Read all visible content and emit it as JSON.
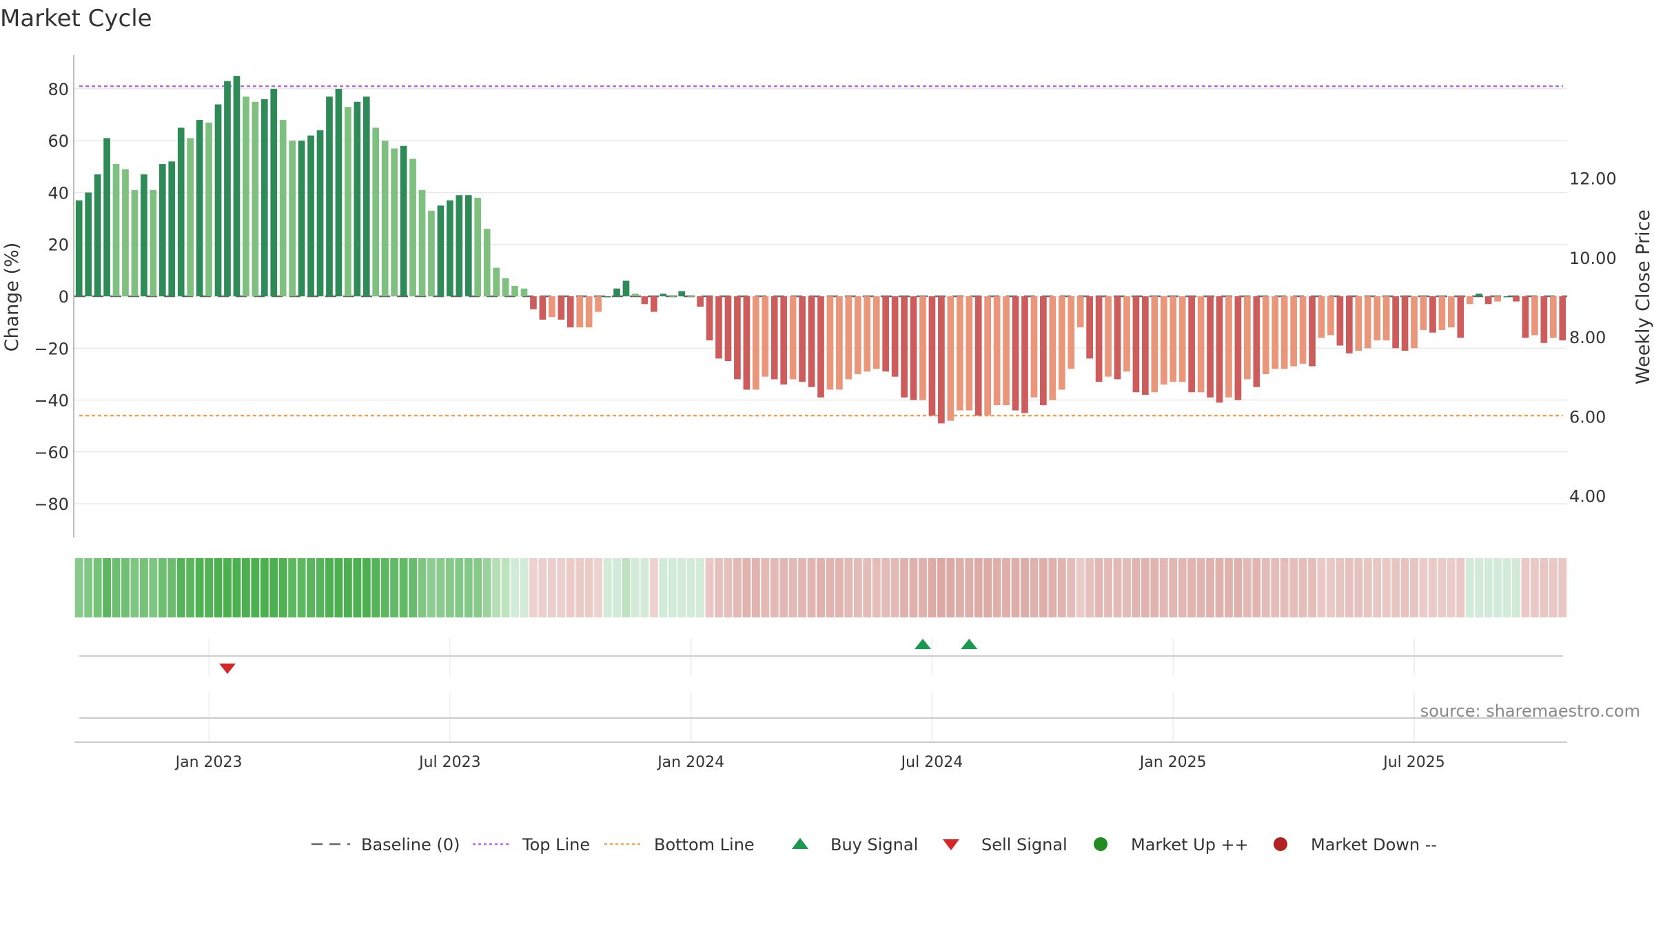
{
  "chart_data": {
    "type": "bar",
    "title": "Market Cycle",
    "ylabel_left": "Change (%)",
    "ylabel_right": "Weekly Close Price",
    "ylim_left": [
      -93,
      93
    ],
    "yticks_left": [
      80,
      60,
      40,
      20,
      0,
      -20,
      -40,
      -60,
      -80
    ],
    "ytick_labels_left": [
      "80",
      "60",
      "40",
      "20",
      "0",
      "−20",
      "−40",
      "−60",
      "−80"
    ],
    "yticks_right": [
      12,
      10,
      8,
      6,
      4
    ],
    "ytick_labels_right": [
      "12.00",
      "10.00",
      "8.00",
      "6.00",
      "4.00"
    ],
    "ylim_right": [
      2.95,
      15.1
    ],
    "x_ticks": [
      "Jan 2023",
      "Jul 2023",
      "Jan 2024",
      "Jul 2024",
      "Jan 2025",
      "Jul 2025"
    ],
    "x_tick_weeks": [
      14,
      40,
      66,
      92,
      118,
      144
    ],
    "grid": true,
    "legend_position": "bottom",
    "reference_lines": {
      "baseline": 0,
      "top_line": 81,
      "bottom_line": -46
    },
    "values": [
      37,
      40,
      47,
      61,
      51,
      49,
      41,
      47,
      41,
      51,
      52,
      65,
      61,
      68,
      67,
      74,
      83,
      85,
      77,
      75,
      76,
      80,
      68,
      60,
      60,
      62,
      64,
      77,
      80,
      73,
      75,
      77,
      65,
      60,
      57,
      58,
      53,
      41,
      33,
      35,
      37,
      39,
      39,
      38,
      26,
      11,
      7,
      4,
      3,
      -5,
      -9,
      -8,
      -9,
      -12,
      -12,
      -12,
      -6,
      0,
      3,
      6,
      1,
      -3,
      -6,
      1,
      0,
      2,
      0,
      -4,
      -17,
      -24,
      -25,
      -32,
      -36,
      -36,
      -31,
      -32,
      -34,
      -32,
      -33,
      -35,
      -39,
      -36,
      -36,
      -32,
      -30,
      -29,
      -28,
      -29,
      -31,
      -39,
      -40,
      -40,
      -46,
      -49,
      -48,
      -44,
      -44,
      -46,
      -46,
      -42,
      -42,
      -44,
      -45,
      -39,
      -42,
      -40,
      -36,
      -28,
      -12,
      -24,
      -33,
      -31,
      -32,
      -29,
      -37,
      -38,
      -37,
      -34,
      -33,
      -33,
      -37,
      -37,
      -39,
      -41,
      -39,
      -40,
      -32,
      -35,
      -30,
      -28,
      -28,
      -27,
      -26,
      -27,
      -16,
      -15,
      -19,
      -22,
      -21,
      -20,
      -17,
      -17,
      -20,
      -21,
      -20,
      -13,
      -14,
      -13,
      -12,
      -16,
      -3,
      1,
      -3,
      -2,
      0,
      -2,
      -16,
      -15,
      -18,
      -16,
      -17
    ],
    "series_colors": {
      "strong_up": "#2e8b57",
      "weak_up": "#7fbf7f",
      "strong_down": "#cd5c5c",
      "weak_down": "#e9967a"
    },
    "heat_colors": {
      "up": "#4caf50",
      "down": "#c97a72",
      "neutral": "#bfe3c8"
    },
    "signals": {
      "buy": {
        "weeks": [
          91,
          96
        ],
        "color": "#1a9850"
      },
      "sell": {
        "weeks": [
          16
        ],
        "color": "#d62728"
      },
      "market_up": {
        "weeks": []
      },
      "market_down": {
        "weeks": []
      }
    },
    "line_colors": {
      "baseline": "#666666",
      "top_line": "#b366d9",
      "bottom_line": "#f0a050"
    }
  },
  "annotation": {
    "source": "source: sharemaestro.com"
  },
  "legend": [
    {
      "label": "Baseline (0)",
      "kind": "dash",
      "color": "#666666"
    },
    {
      "label": "Top Line",
      "kind": "dot",
      "color": "#b366d9"
    },
    {
      "label": "Bottom Line",
      "kind": "dot",
      "color": "#f0a050"
    },
    {
      "label": "Buy Signal",
      "kind": "up-triangle",
      "color": "#1a9850"
    },
    {
      "label": "Sell Signal",
      "kind": "down-triangle",
      "color": "#d62728"
    },
    {
      "label": "Market Up ++",
      "kind": "circle",
      "color": "#228b22"
    },
    {
      "label": "Market Down --",
      "kind": "circle",
      "color": "#b22222"
    }
  ]
}
